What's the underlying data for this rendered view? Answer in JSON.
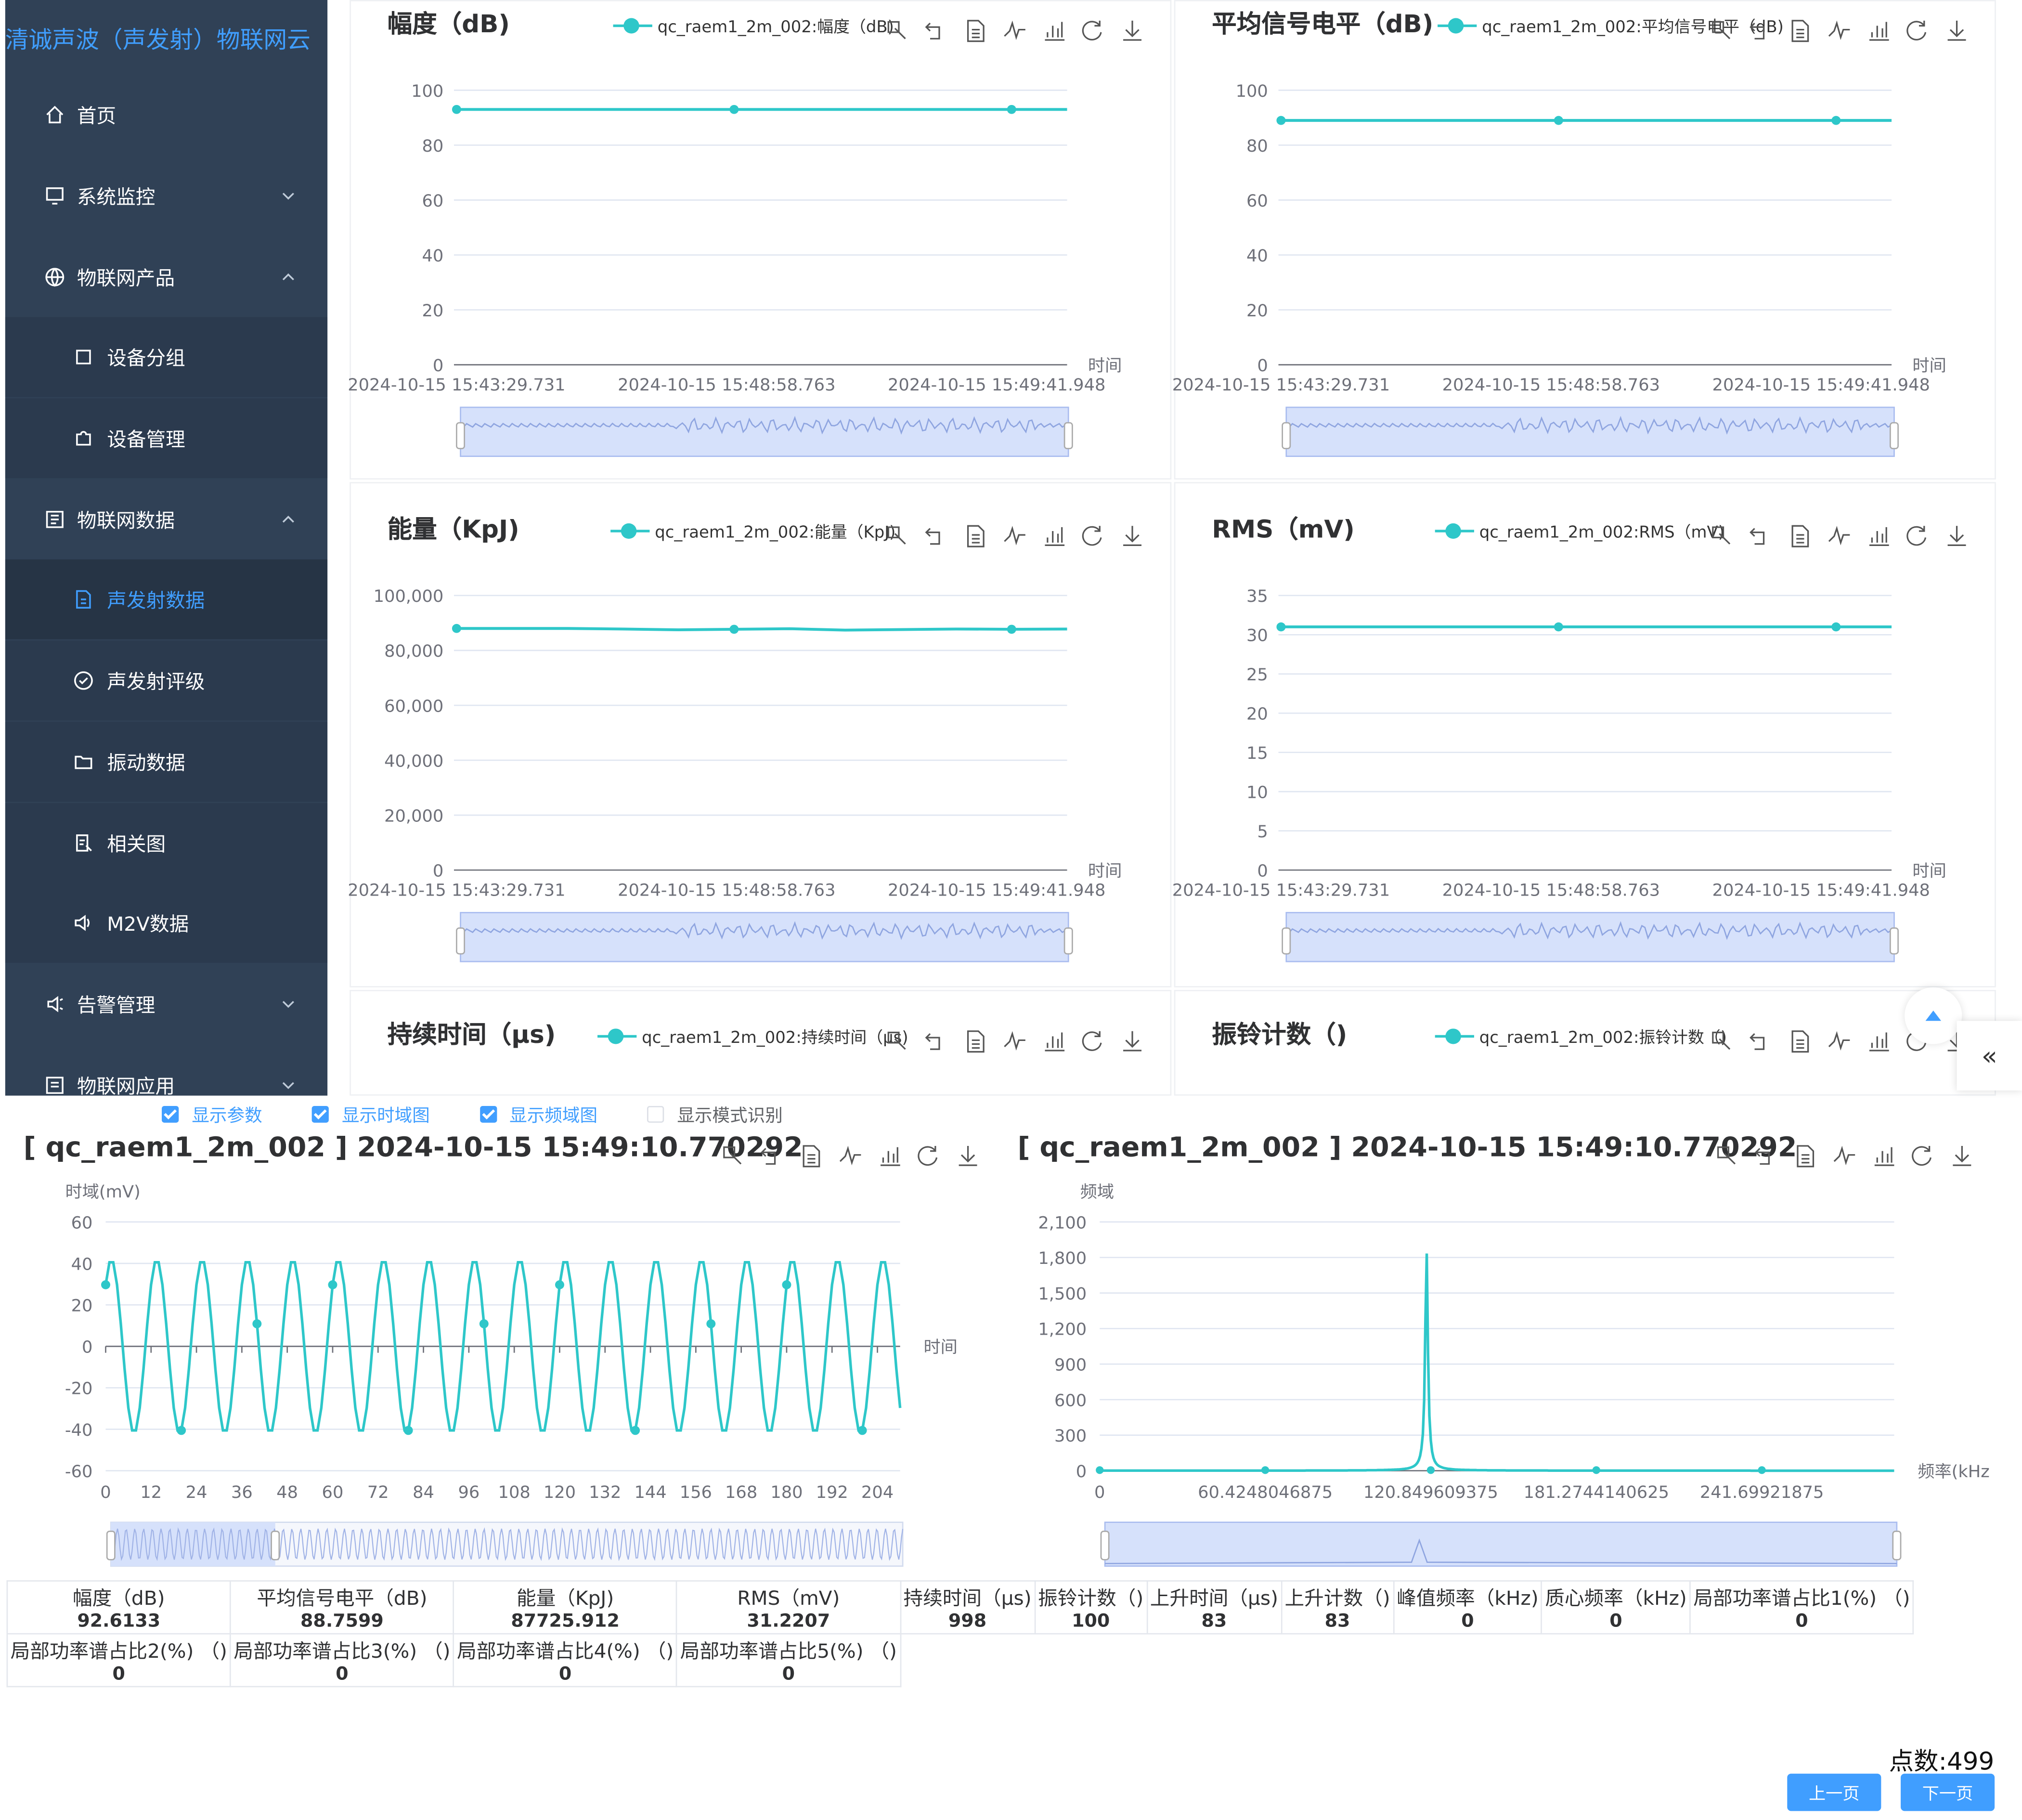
{
  "sidebar": {
    "brand": "清诚声波（声发射）物联网云",
    "items": [
      {
        "label": "首页",
        "icon": "home-icon"
      },
      {
        "label": "系统监控",
        "icon": "monitor-icon"
      },
      {
        "label": "物联网产品",
        "icon": "globe-icon"
      },
      {
        "label": "设备分组",
        "icon": "square-icon"
      },
      {
        "label": "设备管理",
        "icon": "puzzle-icon"
      },
      {
        "label": "物联网数据",
        "icon": "dashboard-icon"
      },
      {
        "label": "声发射数据",
        "icon": "document-icon"
      },
      {
        "label": "声发射评级",
        "icon": "rating-icon"
      },
      {
        "label": "振动数据",
        "icon": "folder-icon"
      },
      {
        "label": "相关图",
        "icon": "chart-search-icon"
      },
      {
        "label": "M2V数据",
        "icon": "speaker-icon"
      },
      {
        "label": "告警管理",
        "icon": "alarm-icon"
      },
      {
        "label": "物联网应用",
        "icon": "app-icon"
      }
    ]
  },
  "charts": [
    {
      "title": "幅度（dB)",
      "legend": "qc_raem1_2m_002:幅度（dB)",
      "xname": "时间",
      "yticks": [
        "0",
        "20",
        "40",
        "60",
        "80",
        "100"
      ],
      "xticks": [
        "2024-10-15 15:43:29.731",
        "2024-10-15 15:48:58.763",
        "2024-10-15 15:49:41.948"
      ]
    },
    {
      "title": "平均信号电平（dB)",
      "legend": "qc_raem1_2m_002:平均信号电平（dB)",
      "xname": "时间",
      "yticks": [
        "0",
        "20",
        "40",
        "60",
        "80",
        "100"
      ],
      "xticks": [
        "2024-10-15 15:43:29.731",
        "2024-10-15 15:48:58.763",
        "2024-10-15 15:49:41.948"
      ]
    },
    {
      "title": "能量（KpJ)",
      "legend": "qc_raem1_2m_002:能量（KpJ)",
      "xname": "时间",
      "yticks": [
        "0",
        "20,000",
        "40,000",
        "60,000",
        "80,000",
        "100,000"
      ],
      "xticks": [
        "2024-10-15 15:43:29.731",
        "2024-10-15 15:48:58.763",
        "2024-10-15 15:49:41.948"
      ]
    },
    {
      "title": "RMS（mV)",
      "legend": "qc_raem1_2m_002:RMS（mV)",
      "xname": "时间",
      "yticks": [
        "0",
        "5",
        "10",
        "15",
        "20",
        "25",
        "30",
        "35"
      ],
      "xticks": [
        "2024-10-15 15:43:29.731",
        "2024-10-15 15:48:58.763",
        "2024-10-15 15:49:41.948"
      ]
    },
    {
      "title": "持续时间（μs)",
      "legend": "qc_raem1_2m_002:持续时间（μs)"
    },
    {
      "title": "振铃计数（)",
      "legend": "qc_raem1_2m_002:振铃计数（)"
    }
  ],
  "chart_data": [
    {
      "type": "line",
      "title": "幅度（dB)",
      "series": [
        {
          "name": "qc_raem1_2m_002:幅度（dB)",
          "values": [
            93,
            93,
            93,
            93,
            93,
            93,
            93,
            93,
            93,
            93,
            93,
            93
          ]
        }
      ],
      "x": [
        "2024-10-15 15:43:29.731",
        "",
        "",
        "",
        "",
        "2024-10-15 15:48:58.763",
        "",
        "",
        "",
        "",
        "2024-10-15 15:49:41.948",
        ""
      ],
      "ylim": [
        0,
        100
      ],
      "xlabel": "时间"
    },
    {
      "type": "line",
      "title": "平均信号电平（dB)",
      "series": [
        {
          "name": "qc_raem1_2m_002:平均信号电平（dB)",
          "values": [
            89,
            89,
            89,
            89,
            89,
            89,
            89,
            89,
            89,
            89,
            89,
            89
          ]
        }
      ],
      "x": [
        "2024-10-15 15:43:29.731",
        "",
        "",
        "",
        "",
        "2024-10-15 15:48:58.763",
        "",
        "",
        "",
        "",
        "2024-10-15 15:49:41.948",
        ""
      ],
      "ylim": [
        0,
        100
      ],
      "xlabel": "时间"
    },
    {
      "type": "line",
      "title": "能量（KpJ)",
      "series": [
        {
          "name": "qc_raem1_2m_002:能量（KpJ)",
          "values": [
            88000,
            88000,
            88000,
            87800,
            87500,
            87700,
            87900,
            87400,
            87600,
            87800,
            87700,
            87800
          ]
        }
      ],
      "x": [
        "2024-10-15 15:43:29.731",
        "",
        "",
        "",
        "",
        "2024-10-15 15:48:58.763",
        "",
        "",
        "",
        "",
        "2024-10-15 15:49:41.948",
        ""
      ],
      "ylim": [
        0,
        100000
      ],
      "xlabel": "时间"
    },
    {
      "type": "line",
      "title": "RMS（mV)",
      "series": [
        {
          "name": "qc_raem1_2m_002:RMS（mV)",
          "values": [
            31,
            31,
            31,
            31,
            31,
            31,
            31,
            31,
            31,
            31,
            31,
            31
          ]
        }
      ],
      "x": [
        "2024-10-15 15:43:29.731",
        "",
        "",
        "",
        "",
        "2024-10-15 15:48:58.763",
        "",
        "",
        "",
        "",
        "2024-10-15 15:49:41.948",
        ""
      ],
      "ylim": [
        0,
        35
      ],
      "xlabel": "时间"
    },
    {
      "type": "line",
      "title": "时域(mV)",
      "x_range": [
        0,
        210
      ],
      "period": 12,
      "amplitude": 42,
      "points": 211,
      "ylim": [
        -60,
        60
      ],
      "xticks": [
        "0",
        "12",
        "24",
        "36",
        "48",
        "60",
        "72",
        "84",
        "96",
        "108",
        "120",
        "132",
        "144",
        "156",
        "168",
        "180",
        "192",
        "204"
      ],
      "yticks": [
        "-60",
        "-40",
        "-20",
        "0",
        "20",
        "40",
        "60"
      ],
      "xlabel": "时间"
    },
    {
      "type": "line",
      "title": "频域",
      "peak_x": 119.3,
      "peak_y": 1840,
      "xlim": [
        0,
        290
      ],
      "ylim": [
        0,
        2100
      ],
      "xticks": [
        "0",
        "60.4248046875",
        "120.849609375",
        "181.2744140625",
        "241.69921875"
      ],
      "yticks": [
        "0",
        "300",
        "600",
        "900",
        "1,200",
        "1,500",
        "1,800",
        "2,100"
      ],
      "xlabel": "频率(kHz"
    }
  ],
  "options": {
    "show_params": "显示参数",
    "show_time": "显示时域图",
    "show_freq": "显示频域图",
    "show_mode": "显示模式识别",
    "checked": [
      true,
      true,
      true,
      false
    ]
  },
  "bottom": {
    "title_left": "[ qc_raem1_2m_002 ] 2024-10-15 15:49:10.770292",
    "title_right": "[ qc_raem1_2m_002 ] 2024-10-15 15:49:10.770292",
    "time_ylabel": "时域(mV)",
    "time_xlabel": "时间",
    "freq_ylabel": "频域",
    "freq_xlabel": "频率(kHz"
  },
  "params": [
    [
      {
        "k": "幅度（dB)",
        "v": "92.6133"
      },
      {
        "k": "平均信号电平（dB)",
        "v": "88.7599"
      },
      {
        "k": "能量（KpJ)",
        "v": "87725.912"
      },
      {
        "k": "RMS（mV)",
        "v": "31.2207"
      },
      {
        "k": "持续时间（μs)",
        "v": "998"
      },
      {
        "k": "振铃计数（)",
        "v": "100"
      },
      {
        "k": "上升时间（μs)",
        "v": "83"
      },
      {
        "k": "上升计数（)",
        "v": "83"
      },
      {
        "k": "峰值频率（kHz)",
        "v": "0"
      },
      {
        "k": "质心频率（kHz)",
        "v": "0"
      },
      {
        "k": "局部功率谱占比1(%) （)",
        "v": "0"
      }
    ],
    [
      {
        "k": "局部功率谱占比2(%) （)",
        "v": "0"
      },
      {
        "k": "局部功率谱占比3(%) （)",
        "v": "0"
      },
      {
        "k": "局部功率谱占比4(%) （)",
        "v": "0"
      },
      {
        "k": "局部功率谱占比5(%) （)",
        "v": "0"
      }
    ]
  ],
  "footer": {
    "points": "点数:499",
    "prev": "上一页",
    "next": "下一页"
  },
  "colors": {
    "sidebar": "#304156",
    "accent": "#409eff",
    "series": "#2ec7c9"
  }
}
